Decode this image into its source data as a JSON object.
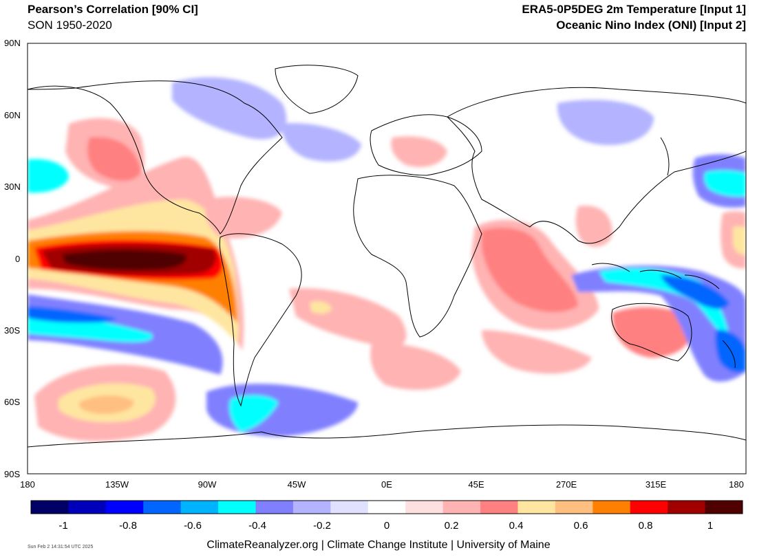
{
  "header": {
    "title_left": "Pearson’s Correlation [90% CI]",
    "subtitle_left": "SON 1950-2020",
    "title_right": "ERA5-0P5DEG 2m Temperature [Input 1]",
    "subtitle_right": "Oceanic Nino Index (ONI) [Input 2]"
  },
  "axes": {
    "lat_labels": [
      "90N",
      "60N",
      "30N",
      "0",
      "30S",
      "60S",
      "90S"
    ],
    "lon_labels": [
      "180",
      "135W",
      "90W",
      "45W",
      "0E",
      "45E",
      "270E",
      "315E",
      "180"
    ]
  },
  "colorbar": {
    "colors": [
      "#000066",
      "#0000bb",
      "#0000ff",
      "#0066ff",
      "#00b3ff",
      "#00ffff",
      "#8080ff",
      "#b3b3ff",
      "#e0e0ff",
      "#ffffff",
      "#ffe0e0",
      "#ffb3b3",
      "#ff8080",
      "#ffe6a0",
      "#ffbf80",
      "#ff8000",
      "#ff0000",
      "#a00000",
      "#500000"
    ],
    "tick_labels": [
      "-1",
      "-0.8",
      "-0.6",
      "-0.4",
      "-0.2",
      "0",
      "0.2",
      "0.4",
      "0.6",
      "0.8",
      "1"
    ]
  },
  "footer": {
    "credit": "ClimateReanalyzer.org | Climate Change Institute | University of Maine",
    "timestamp": "Sun Feb  2 14:31:54 UTC 2025"
  }
}
